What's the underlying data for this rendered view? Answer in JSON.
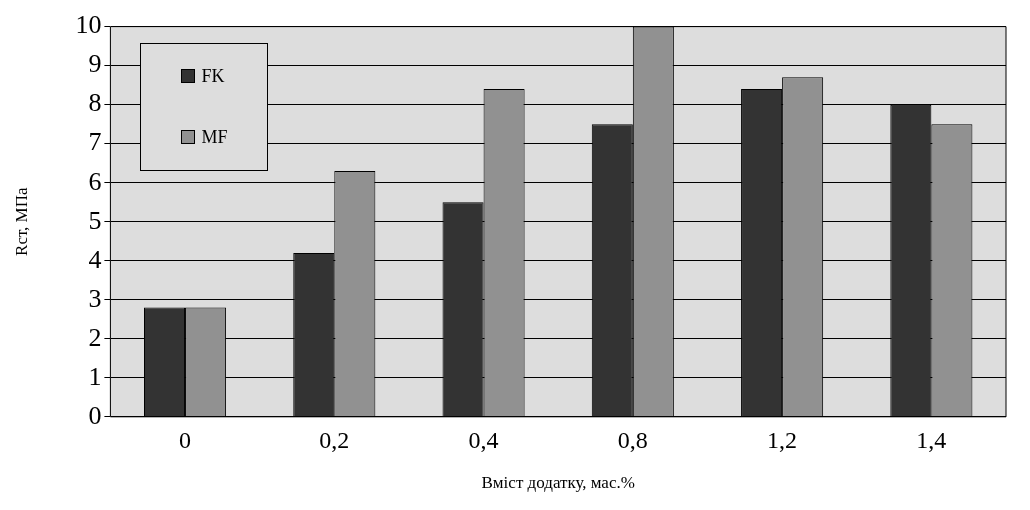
{
  "chart_data": {
    "type": "bar",
    "xlabel": "Вміст додатку, мас.%",
    "ylabel": "Rст, МПа",
    "categories": [
      "0",
      "0,2",
      "0,4",
      "0,8",
      "1,2",
      "1,4"
    ],
    "series": [
      {
        "name": "FK",
        "color": "#333333",
        "values": [
          2.8,
          4.2,
          5.5,
          7.5,
          8.4,
          8.0
        ]
      },
      {
        "name": "MF",
        "color": "#919191",
        "values": [
          2.8,
          6.3,
          8.4,
          10,
          8.7,
          7.5
        ]
      }
    ],
    "ylim": [
      0,
      10
    ],
    "yticks": [
      0,
      1,
      2,
      3,
      4,
      5,
      6,
      7,
      8,
      9,
      10
    ],
    "grid": "y",
    "legend": "top left"
  }
}
